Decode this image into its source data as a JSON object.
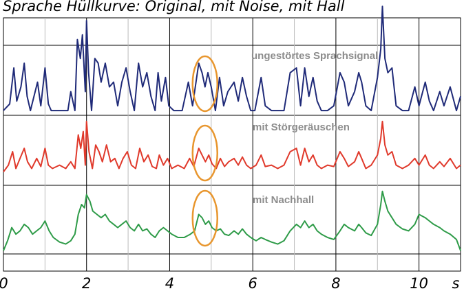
{
  "chart_data": {
    "type": "line",
    "title": "Sprache Hüllkurve: Original,  mit Noise,  mit Hall",
    "x_unit": "s",
    "xlim": [
      0,
      11
    ],
    "x_ticks": [
      0,
      2,
      4,
      6,
      8,
      10
    ],
    "x_tick_labels": [
      "0",
      "2",
      "4",
      "6",
      "8",
      "10"
    ],
    "grid": true,
    "highlight": {
      "x_center": 4.85,
      "color": "#e8962e"
    },
    "series": [
      {
        "name": "ungestörtes Sprachsignal",
        "color": "#1f2a78",
        "ylim": [
          0,
          1
        ],
        "points": [
          [
            0,
            0.05
          ],
          [
            0.15,
            0.12
          ],
          [
            0.25,
            0.5
          ],
          [
            0.32,
            0.15
          ],
          [
            0.42,
            0.3
          ],
          [
            0.5,
            0.55
          ],
          [
            0.57,
            0.2
          ],
          [
            0.65,
            0.05
          ],
          [
            0.82,
            0.35
          ],
          [
            0.9,
            0.1
          ],
          [
            1.0,
            0.5
          ],
          [
            1.08,
            0.12
          ],
          [
            1.15,
            0.05
          ],
          [
            1.35,
            0.05
          ],
          [
            1.55,
            0.05
          ],
          [
            1.62,
            0.25
          ],
          [
            1.72,
            0.05
          ],
          [
            1.78,
            0.8
          ],
          [
            1.85,
            0.6
          ],
          [
            1.9,
            0.85
          ],
          [
            1.97,
            0.25
          ],
          [
            2.0,
            1.0
          ],
          [
            2.05,
            0.45
          ],
          [
            2.12,
            0.05
          ],
          [
            2.2,
            0.6
          ],
          [
            2.28,
            0.55
          ],
          [
            2.35,
            0.35
          ],
          [
            2.45,
            0.55
          ],
          [
            2.55,
            0.3
          ],
          [
            2.65,
            0.35
          ],
          [
            2.75,
            0.1
          ],
          [
            2.85,
            0.35
          ],
          [
            2.95,
            0.5
          ],
          [
            3.05,
            0.25
          ],
          [
            3.15,
            0.05
          ],
          [
            3.25,
            0.55
          ],
          [
            3.35,
            0.3
          ],
          [
            3.45,
            0.45
          ],
          [
            3.55,
            0.2
          ],
          [
            3.65,
            0.05
          ],
          [
            3.72,
            0.45
          ],
          [
            3.8,
            0.15
          ],
          [
            3.9,
            0.4
          ],
          [
            3.98,
            0.1
          ],
          [
            4.1,
            0.05
          ],
          [
            4.3,
            0.05
          ],
          [
            4.45,
            0.35
          ],
          [
            4.55,
            0.1
          ],
          [
            4.7,
            0.55
          ],
          [
            4.78,
            0.45
          ],
          [
            4.85,
            0.3
          ],
          [
            4.92,
            0.45
          ],
          [
            5.0,
            0.3
          ],
          [
            5.1,
            0.05
          ],
          [
            5.2,
            0.4
          ],
          [
            5.3,
            0.1
          ],
          [
            5.4,
            0.25
          ],
          [
            5.55,
            0.35
          ],
          [
            5.65,
            0.15
          ],
          [
            5.75,
            0.4
          ],
          [
            5.85,
            0.2
          ],
          [
            5.95,
            0.05
          ],
          [
            6.05,
            0.05
          ],
          [
            6.2,
            0.4
          ],
          [
            6.3,
            0.1
          ],
          [
            6.45,
            0.05
          ],
          [
            6.6,
            0.05
          ],
          [
            6.75,
            0.05
          ],
          [
            6.9,
            0.45
          ],
          [
            7.05,
            0.5
          ],
          [
            7.15,
            0.1
          ],
          [
            7.25,
            0.5
          ],
          [
            7.35,
            0.2
          ],
          [
            7.45,
            0.4
          ],
          [
            7.55,
            0.15
          ],
          [
            7.65,
            0.05
          ],
          [
            7.8,
            0.05
          ],
          [
            7.95,
            0.1
          ],
          [
            8.1,
            0.45
          ],
          [
            8.2,
            0.35
          ],
          [
            8.3,
            0.1
          ],
          [
            8.45,
            0.25
          ],
          [
            8.55,
            0.45
          ],
          [
            8.62,
            0.35
          ],
          [
            8.72,
            0.1
          ],
          [
            8.85,
            0.05
          ],
          [
            9.0,
            0.4
          ],
          [
            9.08,
            0.7
          ],
          [
            9.12,
            1.15
          ],
          [
            9.18,
            0.6
          ],
          [
            9.25,
            0.45
          ],
          [
            9.35,
            0.5
          ],
          [
            9.45,
            0.1
          ],
          [
            9.6,
            0.05
          ],
          [
            9.75,
            0.05
          ],
          [
            9.9,
            0.3
          ],
          [
            10.0,
            0.1
          ],
          [
            10.15,
            0.35
          ],
          [
            10.25,
            0.15
          ],
          [
            10.35,
            0.05
          ],
          [
            10.5,
            0.25
          ],
          [
            10.6,
            0.1
          ],
          [
            10.75,
            0.3
          ],
          [
            10.9,
            0.05
          ],
          [
            11.0,
            0.2
          ]
        ]
      },
      {
        "name": "mit Störgeräuschen",
        "color": "#e0392b",
        "ylim": [
          0,
          1
        ],
        "points": [
          [
            0,
            0.2
          ],
          [
            0.12,
            0.3
          ],
          [
            0.22,
            0.5
          ],
          [
            0.3,
            0.25
          ],
          [
            0.4,
            0.4
          ],
          [
            0.5,
            0.55
          ],
          [
            0.58,
            0.35
          ],
          [
            0.68,
            0.25
          ],
          [
            0.8,
            0.4
          ],
          [
            0.9,
            0.28
          ],
          [
            1.0,
            0.55
          ],
          [
            1.08,
            0.3
          ],
          [
            1.18,
            0.25
          ],
          [
            1.35,
            0.3
          ],
          [
            1.5,
            0.25
          ],
          [
            1.62,
            0.35
          ],
          [
            1.72,
            0.25
          ],
          [
            1.8,
            0.75
          ],
          [
            1.86,
            0.55
          ],
          [
            1.92,
            0.8
          ],
          [
            1.97,
            0.3
          ],
          [
            2.0,
            0.95
          ],
          [
            2.06,
            0.5
          ],
          [
            2.14,
            0.25
          ],
          [
            2.22,
            0.6
          ],
          [
            2.3,
            0.5
          ],
          [
            2.38,
            0.35
          ],
          [
            2.48,
            0.6
          ],
          [
            2.58,
            0.35
          ],
          [
            2.68,
            0.4
          ],
          [
            2.78,
            0.25
          ],
          [
            2.88,
            0.4
          ],
          [
            2.98,
            0.5
          ],
          [
            3.08,
            0.3
          ],
          [
            3.18,
            0.25
          ],
          [
            3.28,
            0.55
          ],
          [
            3.38,
            0.35
          ],
          [
            3.48,
            0.45
          ],
          [
            3.58,
            0.28
          ],
          [
            3.68,
            0.25
          ],
          [
            3.75,
            0.45
          ],
          [
            3.85,
            0.3
          ],
          [
            3.95,
            0.4
          ],
          [
            4.05,
            0.25
          ],
          [
            4.2,
            0.3
          ],
          [
            4.35,
            0.25
          ],
          [
            4.48,
            0.4
          ],
          [
            4.58,
            0.28
          ],
          [
            4.7,
            0.55
          ],
          [
            4.78,
            0.45
          ],
          [
            4.86,
            0.35
          ],
          [
            4.94,
            0.45
          ],
          [
            5.02,
            0.32
          ],
          [
            5.12,
            0.25
          ],
          [
            5.22,
            0.4
          ],
          [
            5.32,
            0.28
          ],
          [
            5.42,
            0.35
          ],
          [
            5.55,
            0.4
          ],
          [
            5.65,
            0.3
          ],
          [
            5.75,
            0.42
          ],
          [
            5.85,
            0.3
          ],
          [
            5.95,
            0.25
          ],
          [
            6.08,
            0.3
          ],
          [
            6.2,
            0.45
          ],
          [
            6.3,
            0.28
          ],
          [
            6.45,
            0.3
          ],
          [
            6.6,
            0.25
          ],
          [
            6.75,
            0.3
          ],
          [
            6.9,
            0.5
          ],
          [
            7.05,
            0.55
          ],
          [
            7.15,
            0.3
          ],
          [
            7.25,
            0.55
          ],
          [
            7.35,
            0.35
          ],
          [
            7.45,
            0.45
          ],
          [
            7.55,
            0.3
          ],
          [
            7.65,
            0.25
          ],
          [
            7.8,
            0.3
          ],
          [
            7.95,
            0.28
          ],
          [
            8.1,
            0.5
          ],
          [
            8.2,
            0.4
          ],
          [
            8.3,
            0.28
          ],
          [
            8.45,
            0.35
          ],
          [
            8.55,
            0.5
          ],
          [
            8.62,
            0.4
          ],
          [
            8.72,
            0.25
          ],
          [
            8.85,
            0.3
          ],
          [
            9.0,
            0.45
          ],
          [
            9.08,
            0.7
          ],
          [
            9.12,
            0.95
          ],
          [
            9.18,
            0.6
          ],
          [
            9.25,
            0.45
          ],
          [
            9.35,
            0.5
          ],
          [
            9.45,
            0.3
          ],
          [
            9.6,
            0.25
          ],
          [
            9.75,
            0.3
          ],
          [
            9.9,
            0.4
          ],
          [
            10.0,
            0.3
          ],
          [
            10.15,
            0.45
          ],
          [
            10.25,
            0.3
          ],
          [
            10.35,
            0.25
          ],
          [
            10.5,
            0.35
          ],
          [
            10.6,
            0.28
          ],
          [
            10.75,
            0.4
          ],
          [
            10.9,
            0.25
          ],
          [
            11.0,
            0.3
          ]
        ]
      },
      {
        "name": "mit Nachhall",
        "color": "#2e9b48",
        "ylim": [
          0,
          1
        ],
        "points": [
          [
            0,
            0.05
          ],
          [
            0.1,
            0.2
          ],
          [
            0.2,
            0.4
          ],
          [
            0.3,
            0.3
          ],
          [
            0.4,
            0.35
          ],
          [
            0.5,
            0.45
          ],
          [
            0.6,
            0.4
          ],
          [
            0.7,
            0.3
          ],
          [
            0.8,
            0.35
          ],
          [
            0.9,
            0.4
          ],
          [
            1.0,
            0.5
          ],
          [
            1.1,
            0.35
          ],
          [
            1.2,
            0.25
          ],
          [
            1.35,
            0.18
          ],
          [
            1.5,
            0.15
          ],
          [
            1.62,
            0.2
          ],
          [
            1.72,
            0.3
          ],
          [
            1.8,
            0.6
          ],
          [
            1.88,
            0.75
          ],
          [
            1.95,
            0.7
          ],
          [
            2.0,
            0.9
          ],
          [
            2.08,
            0.8
          ],
          [
            2.15,
            0.65
          ],
          [
            2.25,
            0.6
          ],
          [
            2.35,
            0.55
          ],
          [
            2.45,
            0.6
          ],
          [
            2.55,
            0.5
          ],
          [
            2.65,
            0.45
          ],
          [
            2.75,
            0.4
          ],
          [
            2.85,
            0.45
          ],
          [
            2.95,
            0.5
          ],
          [
            3.05,
            0.4
          ],
          [
            3.15,
            0.35
          ],
          [
            3.25,
            0.45
          ],
          [
            3.35,
            0.35
          ],
          [
            3.45,
            0.38
          ],
          [
            3.55,
            0.3
          ],
          [
            3.65,
            0.25
          ],
          [
            3.75,
            0.35
          ],
          [
            3.85,
            0.4
          ],
          [
            3.95,
            0.35
          ],
          [
            4.05,
            0.3
          ],
          [
            4.2,
            0.25
          ],
          [
            4.35,
            0.25
          ],
          [
            4.5,
            0.3
          ],
          [
            4.6,
            0.35
          ],
          [
            4.7,
            0.6
          ],
          [
            4.78,
            0.55
          ],
          [
            4.86,
            0.45
          ],
          [
            4.94,
            0.5
          ],
          [
            5.02,
            0.4
          ],
          [
            5.12,
            0.35
          ],
          [
            5.22,
            0.38
          ],
          [
            5.32,
            0.3
          ],
          [
            5.42,
            0.28
          ],
          [
            5.55,
            0.35
          ],
          [
            5.65,
            0.3
          ],
          [
            5.75,
            0.38
          ],
          [
            5.85,
            0.3
          ],
          [
            5.95,
            0.25
          ],
          [
            6.08,
            0.2
          ],
          [
            6.2,
            0.25
          ],
          [
            6.3,
            0.22
          ],
          [
            6.45,
            0.18
          ],
          [
            6.6,
            0.15
          ],
          [
            6.75,
            0.2
          ],
          [
            6.9,
            0.35
          ],
          [
            7.05,
            0.45
          ],
          [
            7.15,
            0.4
          ],
          [
            7.25,
            0.5
          ],
          [
            7.35,
            0.4
          ],
          [
            7.45,
            0.45
          ],
          [
            7.55,
            0.35
          ],
          [
            7.65,
            0.3
          ],
          [
            7.8,
            0.25
          ],
          [
            7.95,
            0.22
          ],
          [
            8.1,
            0.35
          ],
          [
            8.2,
            0.45
          ],
          [
            8.3,
            0.4
          ],
          [
            8.45,
            0.35
          ],
          [
            8.55,
            0.45
          ],
          [
            8.62,
            0.4
          ],
          [
            8.72,
            0.32
          ],
          [
            8.85,
            0.28
          ],
          [
            9.0,
            0.45
          ],
          [
            9.08,
            0.75
          ],
          [
            9.12,
            0.95
          ],
          [
            9.18,
            0.8
          ],
          [
            9.25,
            0.65
          ],
          [
            9.35,
            0.55
          ],
          [
            9.45,
            0.45
          ],
          [
            9.6,
            0.38
          ],
          [
            9.75,
            0.35
          ],
          [
            9.9,
            0.45
          ],
          [
            10.0,
            0.6
          ],
          [
            10.15,
            0.55
          ],
          [
            10.25,
            0.5
          ],
          [
            10.35,
            0.45
          ],
          [
            10.5,
            0.4
          ],
          [
            10.6,
            0.35
          ],
          [
            10.75,
            0.3
          ],
          [
            10.9,
            0.22
          ],
          [
            11.0,
            0.05
          ]
        ]
      }
    ]
  }
}
